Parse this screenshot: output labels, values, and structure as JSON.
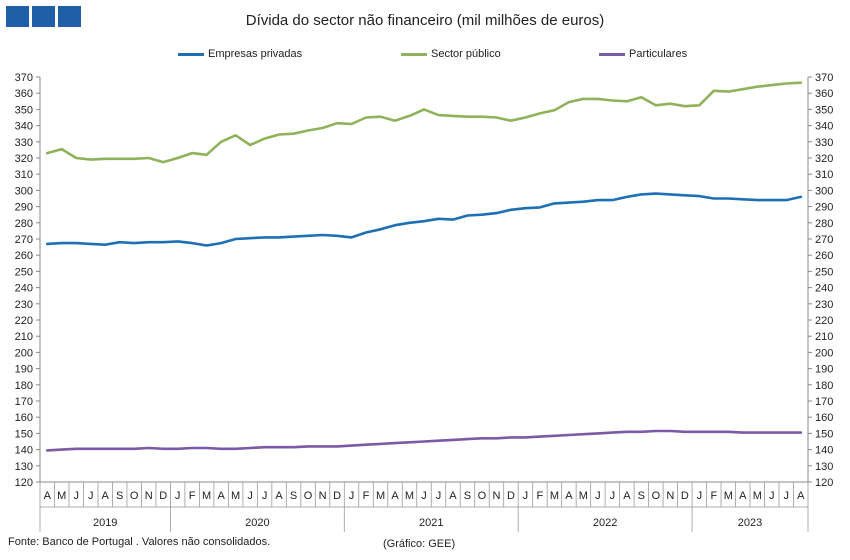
{
  "header": {
    "title": "Dívida do sector não financeiro (mil milhões de euros)"
  },
  "footer": {
    "source": "Fonte: Banco de Portugal . Valores não consolidados.",
    "credit": "(Gráfico: GEE)"
  },
  "colors": {
    "logo": "#1f5fa8"
  },
  "chart_data": {
    "type": "line",
    "title": "Dívida do sector não financeiro (mil milhões de euros)",
    "ylim": [
      120,
      370
    ],
    "y_tick_step": 10,
    "y_axis_both_sides": true,
    "grid": false,
    "legend_position": "top",
    "x": [
      "A",
      "M",
      "J",
      "J",
      "A",
      "S",
      "O",
      "N",
      "D",
      "J",
      "F",
      "M",
      "A",
      "M",
      "J",
      "J",
      "A",
      "S",
      "O",
      "N",
      "D",
      "J",
      "F",
      "M",
      "A",
      "M",
      "J",
      "J",
      "A",
      "S",
      "O",
      "N",
      "D",
      "J",
      "F",
      "M",
      "A",
      "M",
      "J",
      "J",
      "A",
      "S",
      "O",
      "N",
      "D",
      "J",
      "F",
      "M",
      "A",
      "M",
      "J",
      "J",
      "A"
    ],
    "years": [
      {
        "label": "2019",
        "start": 0,
        "end": 8
      },
      {
        "label": "2020",
        "start": 9,
        "end": 20
      },
      {
        "label": "2021",
        "start": 21,
        "end": 32
      },
      {
        "label": "2022",
        "start": 33,
        "end": 44
      },
      {
        "label": "2023",
        "start": 45,
        "end": 52
      }
    ],
    "series": [
      {
        "name": "Empresas privadas",
        "color": "#1f6fb5",
        "values": [
          267,
          267.5,
          267.5,
          267,
          266.5,
          268,
          267.5,
          268,
          268,
          268.5,
          267.5,
          266,
          267.5,
          270,
          270.5,
          271,
          271,
          271.5,
          272,
          272.5,
          272,
          271,
          274,
          276,
          278.5,
          280,
          281,
          282.5,
          282,
          284.5,
          285,
          286,
          288,
          289,
          289.5,
          292,
          292.5,
          293,
          294,
          294,
          296,
          297.5,
          298,
          297.5,
          297,
          296.5,
          295,
          295,
          294.5,
          294,
          294,
          294,
          296
        ]
      },
      {
        "name": "Sector público",
        "color": "#8fb25a",
        "values": [
          323,
          325.5,
          320,
          319,
          319.5,
          319.5,
          319.5,
          320,
          317.5,
          320,
          323,
          322,
          330,
          334,
          328,
          332,
          334.5,
          335,
          337,
          338.5,
          341.5,
          341,
          345,
          345.5,
          343,
          346,
          350,
          346.5,
          346,
          345.5,
          345.5,
          345,
          343,
          345,
          347.5,
          349.5,
          354.5,
          356.5,
          356.5,
          355.5,
          355,
          357.5,
          352.5,
          353.5,
          352,
          352.5,
          361.5,
          361,
          362.5,
          364,
          365,
          366,
          366.5
        ]
      },
      {
        "name": "Particulares",
        "color": "#7b5aa6",
        "values": [
          139.5,
          140,
          140.5,
          140.5,
          140.5,
          140.5,
          140.5,
          141,
          140.5,
          140.5,
          141,
          141,
          140.5,
          140.5,
          141,
          141.5,
          141.5,
          141.5,
          142,
          142,
          142,
          142.5,
          143,
          143.5,
          144,
          144.5,
          145,
          145.5,
          146,
          146.5,
          147,
          147,
          147.5,
          147.5,
          148,
          148.5,
          149,
          149.5,
          150,
          150.5,
          151,
          151,
          151.5,
          151.5,
          151,
          151,
          151,
          151,
          150.5,
          150.5,
          150.5,
          150.5,
          150.5
        ]
      }
    ]
  }
}
